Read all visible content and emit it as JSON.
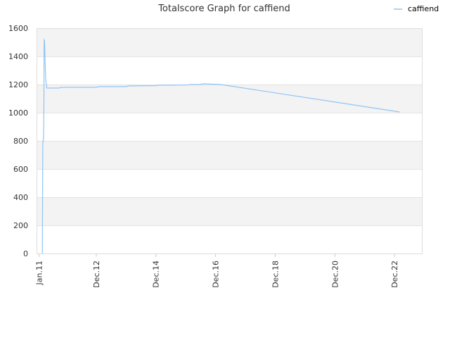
{
  "chart_data": {
    "type": "line",
    "title": "Totalscore Graph for caffiend",
    "xlabel": "",
    "ylabel": "",
    "ylim": [
      0,
      1600
    ],
    "y_ticks": [
      "0",
      "200",
      "400",
      "600",
      "800",
      "1000",
      "1200",
      "1400",
      "1600"
    ],
    "x_ticks": [
      {
        "label": "Jan.11",
        "date": "2011-01-01"
      },
      {
        "label": "Dec.12",
        "date": "2012-12-01"
      },
      {
        "label": "Dec.14",
        "date": "2014-12-01"
      },
      {
        "label": "Dec.16",
        "date": "2016-12-01"
      },
      {
        "label": "Dec.18",
        "date": "2018-12-01"
      },
      {
        "label": "Dec.20",
        "date": "2020-12-01"
      },
      {
        "label": "Dec.22",
        "date": "2022-12-01"
      }
    ],
    "xlim": [
      "2010-12-01",
      "2023-11-01"
    ],
    "grid": true,
    "legend_position": "top-right",
    "series": [
      {
        "name": "caffiend",
        "color": "#90c4f4",
        "points": [
          {
            "x": "2011-02-10",
            "y": 0
          },
          {
            "x": "2011-02-12",
            "y": 320
          },
          {
            "x": "2011-02-14",
            "y": 640
          },
          {
            "x": "2011-02-16",
            "y": 780
          },
          {
            "x": "2011-02-20",
            "y": 800
          },
          {
            "x": "2011-02-24",
            "y": 820
          },
          {
            "x": "2011-02-27",
            "y": 900
          },
          {
            "x": "2011-03-01",
            "y": 1100
          },
          {
            "x": "2011-03-02",
            "y": 1420
          },
          {
            "x": "2011-03-04",
            "y": 1520
          },
          {
            "x": "2011-03-08",
            "y": 1510
          },
          {
            "x": "2011-03-12",
            "y": 1450
          },
          {
            "x": "2011-03-18",
            "y": 1320
          },
          {
            "x": "2011-03-25",
            "y": 1220
          },
          {
            "x": "2011-04-01",
            "y": 1200
          },
          {
            "x": "2011-04-05",
            "y": 1175
          },
          {
            "x": "2011-09-01",
            "y": 1175
          },
          {
            "x": "2011-10-01",
            "y": 1180
          },
          {
            "x": "2012-12-01",
            "y": 1180
          },
          {
            "x": "2013-01-01",
            "y": 1185
          },
          {
            "x": "2013-12-01",
            "y": 1185
          },
          {
            "x": "2014-01-01",
            "y": 1190
          },
          {
            "x": "2014-12-01",
            "y": 1192
          },
          {
            "x": "2015-01-01",
            "y": 1195
          },
          {
            "x": "2016-01-01",
            "y": 1197
          },
          {
            "x": "2016-02-01",
            "y": 1200
          },
          {
            "x": "2016-06-01",
            "y": 1200
          },
          {
            "x": "2016-07-01",
            "y": 1205
          },
          {
            "x": "2017-02-01",
            "y": 1200
          },
          {
            "x": "2023-02-01",
            "y": 1005
          }
        ]
      }
    ]
  }
}
